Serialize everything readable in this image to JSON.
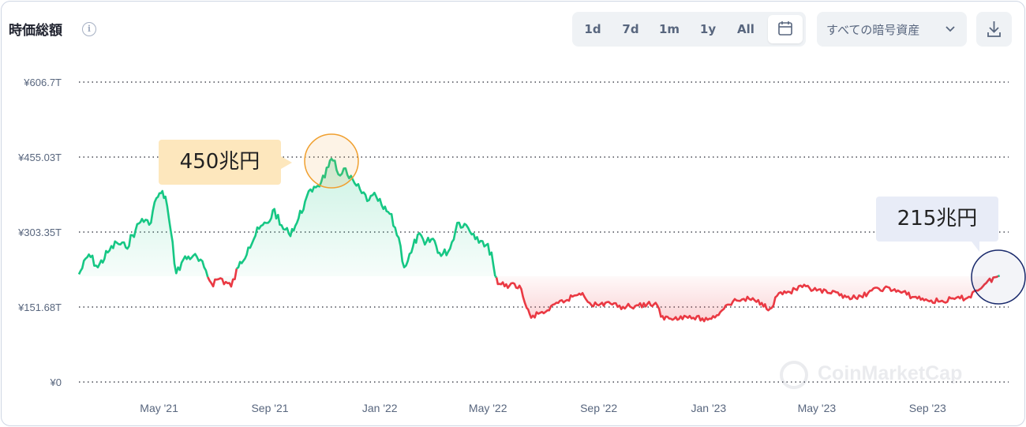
{
  "header": {
    "title": "時価総額",
    "info_icon": "info-icon",
    "ranges": [
      "1d",
      "7d",
      "1m",
      "1y",
      "All"
    ],
    "calendar_icon": "calendar-icon",
    "asset_select": "すべての暗号資産",
    "download_icon": "download-icon"
  },
  "annotations": {
    "peak": "450兆円",
    "current": "215兆円"
  },
  "watermark": "CoinMarketCap",
  "colors": {
    "up": "#16c784",
    "down": "#ea3943",
    "peak_circle": "#f0a030",
    "current_circle": "#1a2a6c"
  },
  "chart_data": {
    "type": "line",
    "y_unit": "JPY",
    "ylim": [
      0,
      606.7
    ],
    "yticks": [
      {
        "value": 0,
        "label": "¥0"
      },
      {
        "value": 151.68,
        "label": "¥151.68T"
      },
      {
        "value": 303.35,
        "label": "¥303.35T"
      },
      {
        "value": 455.03,
        "label": "¥455.03T"
      },
      {
        "value": 606.7,
        "label": "¥606.7T"
      }
    ],
    "xlim": [
      "2021-02-01",
      "2023-11-30"
    ],
    "xticks": [
      {
        "date": "2021-05-01",
        "label": "May '21"
      },
      {
        "date": "2021-09-01",
        "label": "Sep '21"
      },
      {
        "date": "2022-01-01",
        "label": "Jan '22"
      },
      {
        "date": "2022-05-01",
        "label": "May '22"
      },
      {
        "date": "2022-09-01",
        "label": "Sep '22"
      },
      {
        "date": "2023-01-01",
        "label": "Jan '23"
      },
      {
        "date": "2023-05-01",
        "label": "May '23"
      },
      {
        "date": "2023-09-01",
        "label": "Sep '23"
      }
    ],
    "baseline": 214,
    "grid": true,
    "series": [
      {
        "points": [
          [
            "2021-02-01",
            218
          ],
          [
            "2021-02-12",
            258
          ],
          [
            "2021-02-22",
            232
          ],
          [
            "2021-03-05",
            262
          ],
          [
            "2021-03-15",
            282
          ],
          [
            "2021-03-25",
            272
          ],
          [
            "2021-04-05",
            308
          ],
          [
            "2021-04-12",
            330
          ],
          [
            "2021-04-20",
            318
          ],
          [
            "2021-04-28",
            372
          ],
          [
            "2021-05-03",
            382
          ],
          [
            "2021-05-08",
            375
          ],
          [
            "2021-05-12",
            330
          ],
          [
            "2021-05-20",
            220
          ],
          [
            "2021-05-28",
            248
          ],
          [
            "2021-06-08",
            256
          ],
          [
            "2021-06-20",
            232
          ],
          [
            "2021-06-28",
            200
          ],
          [
            "2021-07-08",
            210
          ],
          [
            "2021-07-20",
            193
          ],
          [
            "2021-07-28",
            232
          ],
          [
            "2021-08-08",
            272
          ],
          [
            "2021-08-20",
            310
          ],
          [
            "2021-08-30",
            322
          ],
          [
            "2021-09-06",
            350
          ],
          [
            "2021-09-12",
            318
          ],
          [
            "2021-09-22",
            300
          ],
          [
            "2021-10-01",
            322
          ],
          [
            "2021-10-10",
            365
          ],
          [
            "2021-10-20",
            395
          ],
          [
            "2021-10-28",
            405
          ],
          [
            "2021-11-05",
            435
          ],
          [
            "2021-11-10",
            448
          ],
          [
            "2021-11-16",
            420
          ],
          [
            "2021-11-22",
            432
          ],
          [
            "2021-11-28",
            412
          ],
          [
            "2021-12-04",
            402
          ],
          [
            "2021-12-12",
            382
          ],
          [
            "2021-12-20",
            368
          ],
          [
            "2021-12-28",
            375
          ],
          [
            "2022-01-05",
            350
          ],
          [
            "2022-01-12",
            340
          ],
          [
            "2022-01-22",
            292
          ],
          [
            "2022-01-28",
            232
          ],
          [
            "2022-02-05",
            262
          ],
          [
            "2022-02-12",
            298
          ],
          [
            "2022-02-20",
            278
          ],
          [
            "2022-03-01",
            290
          ],
          [
            "2022-03-10",
            255
          ],
          [
            "2022-03-20",
            270
          ],
          [
            "2022-03-28",
            322
          ],
          [
            "2022-04-05",
            320
          ],
          [
            "2022-04-15",
            300
          ],
          [
            "2022-04-25",
            285
          ],
          [
            "2022-05-05",
            262
          ],
          [
            "2022-05-09",
            214
          ]
        ]
      },
      {
        "points": [
          [
            "2022-05-09",
            214
          ],
          [
            "2022-05-12",
            198
          ],
          [
            "2022-05-25",
            195
          ],
          [
            "2022-06-05",
            195
          ],
          [
            "2022-06-13",
            150
          ],
          [
            "2022-06-18",
            130
          ],
          [
            "2022-06-28",
            140
          ],
          [
            "2022-07-08",
            145
          ],
          [
            "2022-07-18",
            160
          ],
          [
            "2022-07-28",
            166
          ],
          [
            "2022-08-05",
            175
          ],
          [
            "2022-08-14",
            180
          ],
          [
            "2022-08-22",
            160
          ],
          [
            "2022-09-01",
            155
          ],
          [
            "2022-09-12",
            162
          ],
          [
            "2022-09-22",
            152
          ],
          [
            "2022-10-02",
            153
          ],
          [
            "2022-10-15",
            155
          ],
          [
            "2022-10-25",
            158
          ],
          [
            "2022-11-05",
            155
          ],
          [
            "2022-11-09",
            132
          ],
          [
            "2022-11-20",
            128
          ],
          [
            "2022-12-01",
            133
          ],
          [
            "2022-12-15",
            130
          ],
          [
            "2022-12-31",
            126
          ],
          [
            "2023-01-10",
            135
          ],
          [
            "2023-01-20",
            155
          ],
          [
            "2023-02-01",
            165
          ],
          [
            "2023-02-15",
            168
          ],
          [
            "2023-03-01",
            160
          ],
          [
            "2023-03-10",
            148
          ],
          [
            "2023-03-20",
            180
          ],
          [
            "2023-04-01",
            182
          ],
          [
            "2023-04-15",
            192
          ],
          [
            "2023-05-01",
            185
          ],
          [
            "2023-05-15",
            180
          ],
          [
            "2023-06-01",
            175
          ],
          [
            "2023-06-15",
            168
          ],
          [
            "2023-07-01",
            185
          ],
          [
            "2023-07-15",
            190
          ],
          [
            "2023-08-01",
            183
          ],
          [
            "2023-08-17",
            172
          ],
          [
            "2023-09-01",
            165
          ],
          [
            "2023-09-15",
            163
          ],
          [
            "2023-10-01",
            168
          ],
          [
            "2023-10-15",
            170
          ],
          [
            "2023-10-25",
            185
          ],
          [
            "2023-11-05",
            200
          ],
          [
            "2023-11-15",
            212
          ],
          [
            "2023-11-20",
            215
          ]
        ]
      }
    ]
  }
}
